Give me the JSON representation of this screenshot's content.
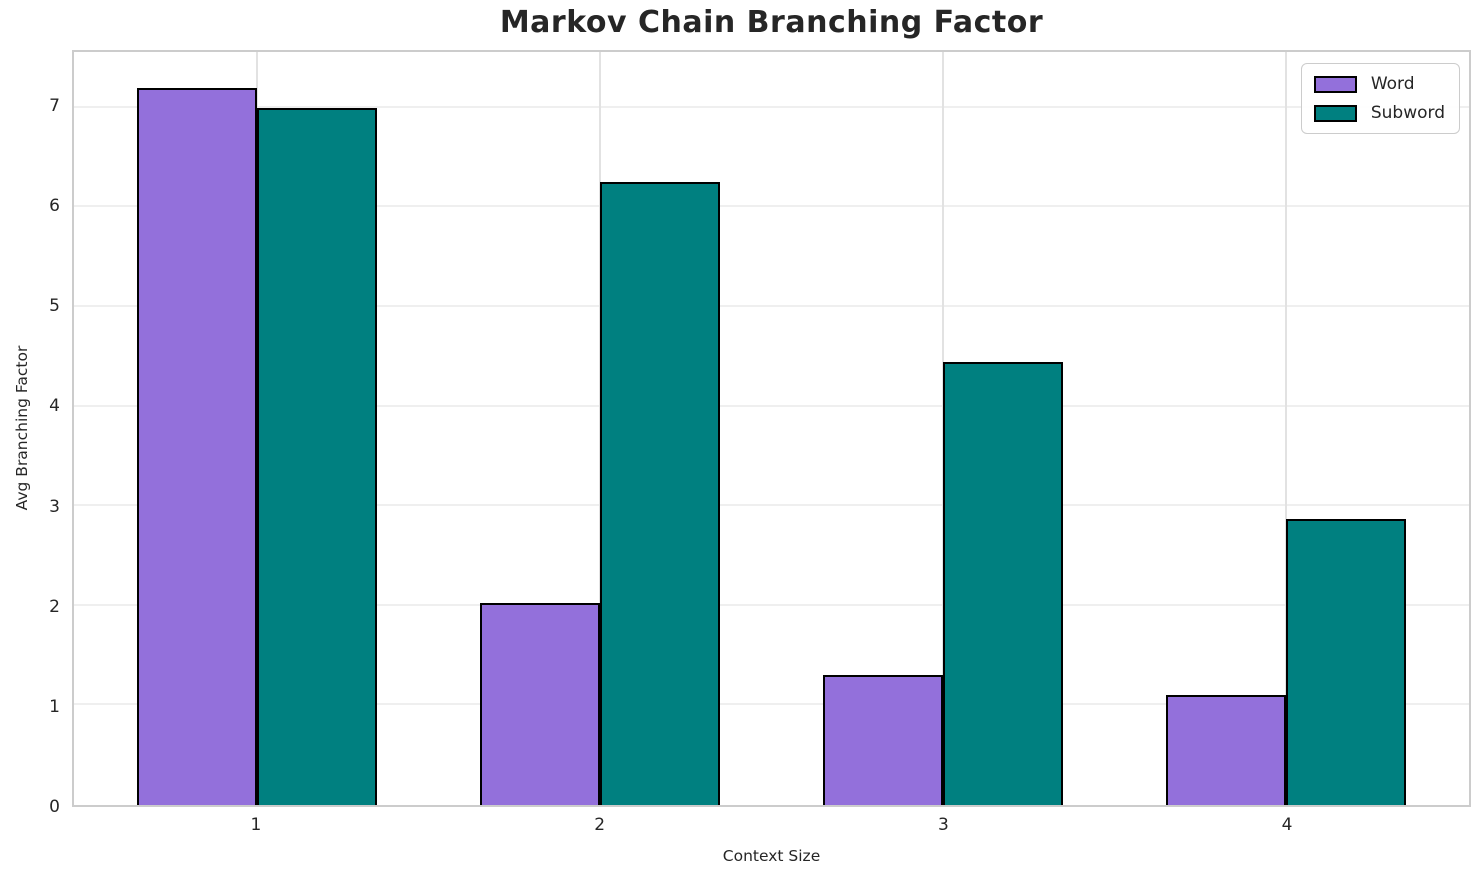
{
  "title": "Markov Chain Branching Factor",
  "chart_data": {
    "type": "bar",
    "title": "Markov Chain Branching Factor",
    "xlabel": "Context Size",
    "ylabel": "Avg Branching Factor",
    "categories": [
      1,
      2,
      3,
      4
    ],
    "series": [
      {
        "name": "Word",
        "color": "#9370DB",
        "values": [
          7.2,
          2.03,
          1.31,
          1.1
        ]
      },
      {
        "name": "Subword",
        "color": "#008080",
        "values": [
          7.0,
          6.25,
          4.45,
          2.87
        ]
      }
    ],
    "bar_width": 0.35,
    "edge_color": "#000000",
    "ylim": [
      0,
      7.56
    ],
    "xlim": [
      0.465,
      4.535
    ],
    "yticks": [
      0,
      1,
      2,
      3,
      4,
      5,
      6,
      7
    ],
    "xticks": [
      "1",
      "2",
      "3",
      "4"
    ],
    "grid": true,
    "legend_position": "upper right"
  }
}
